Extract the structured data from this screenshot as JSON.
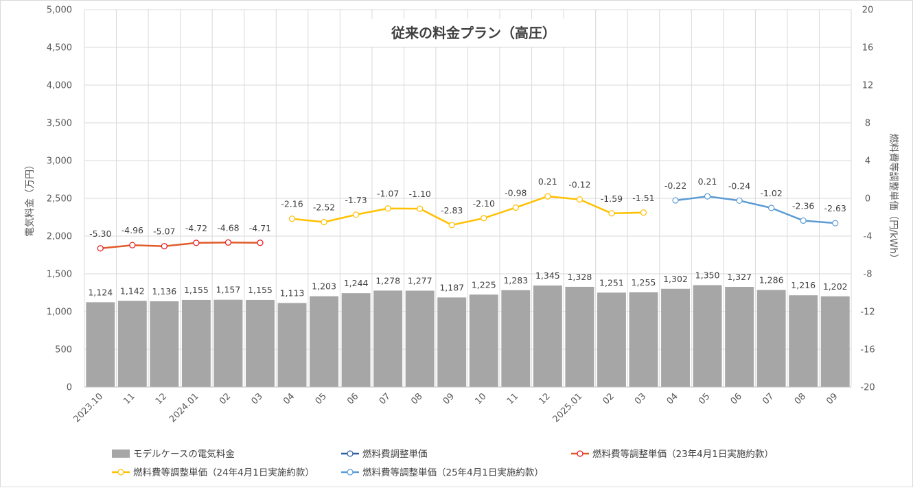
{
  "chart_data": {
    "type": "bar",
    "title": "従来の料金プラン（高圧）",
    "ylabel_left": "電気料金（万円）",
    "ylabel_right": "燃料費等調整単価（円/kWh）",
    "ylim_left": [
      0,
      5000
    ],
    "ylim_right": [
      -20,
      20
    ],
    "yticks_left": [
      "0",
      "500",
      "1,000",
      "1,500",
      "2,000",
      "2,500",
      "3,000",
      "3,500",
      "4,000",
      "4,500",
      "5,000"
    ],
    "yticks_right": [
      "-20",
      "-16",
      "-12",
      "-8",
      "-4",
      "0",
      "4",
      "8",
      "12",
      "16",
      "20"
    ],
    "grid": true,
    "legend_position": "bottom",
    "categories": [
      "2023.10",
      "11",
      "12",
      "2024.01",
      "02",
      "03",
      "04",
      "05",
      "06",
      "07",
      "08",
      "09",
      "10",
      "11",
      "12",
      "2025.01",
      "02",
      "03",
      "04",
      "05",
      "06",
      "07",
      "08",
      "09"
    ],
    "bar_series": {
      "name": "モデルケースの電気料金",
      "color": "#a6a6a6",
      "values": [
        1124,
        1142,
        1136,
        1155,
        1157,
        1155,
        1113,
        1203,
        1244,
        1278,
        1277,
        1187,
        1225,
        1283,
        1345,
        1328,
        1251,
        1255,
        1302,
        1350,
        1327,
        1286,
        1216,
        1202
      ],
      "labels": [
        "1,124",
        "1,142",
        "1,136",
        "1,155",
        "1,157",
        "1,155",
        "1,113",
        "1,203",
        "1,244",
        "1,278",
        "1,277",
        "1,187",
        "1,225",
        "1,283",
        "1,345",
        "1,328",
        "1,251",
        "1,255",
        "1,302",
        "1,350",
        "1,327",
        "1,286",
        "1,216",
        "1,202"
      ]
    },
    "line_series": [
      {
        "name": "燃料費調整単価",
        "color": "#2e5f9e",
        "start": 0,
        "values": [],
        "labels": []
      },
      {
        "name": "燃料費等調整単価（23年4月1日実施約款）",
        "color": "#e15a29",
        "marker": "#e8141b",
        "start": 0,
        "values": [
          -5.3,
          -4.96,
          -5.07,
          -4.72,
          -4.68,
          -4.71
        ],
        "labels": [
          "-5.30",
          "-4.96",
          "-5.07",
          "-4.72",
          "-4.68",
          "-4.71"
        ]
      },
      {
        "name": "燃料費等調整単価（24年4月1日実施約款）",
        "color": "#ffc000",
        "marker": "#ffc000",
        "start": 6,
        "values": [
          -2.16,
          -2.52,
          -1.73,
          -1.07,
          -1.1,
          -2.83,
          -2.1,
          -0.98,
          0.21,
          -0.12,
          -1.59,
          -1.51
        ],
        "labels": [
          "-2.16",
          "-2.52",
          "-1.73",
          "-1.07",
          "-1.10",
          "-2.83",
          "-2.10",
          "-0.98",
          "0.21",
          "-0.12",
          "-1.59",
          "-1.51"
        ]
      },
      {
        "name": "燃料費等調整単価（25年4月1日実施約款）",
        "color": "#5b9bd5",
        "marker": "#5b9bd5",
        "start": 18,
        "values": [
          -0.22,
          0.21,
          -0.24,
          -1.02,
          -2.36,
          -2.63
        ],
        "labels": [
          "-0.22",
          "0.21",
          "-0.24",
          "-1.02",
          "-2.36",
          "-2.63"
        ]
      }
    ]
  }
}
